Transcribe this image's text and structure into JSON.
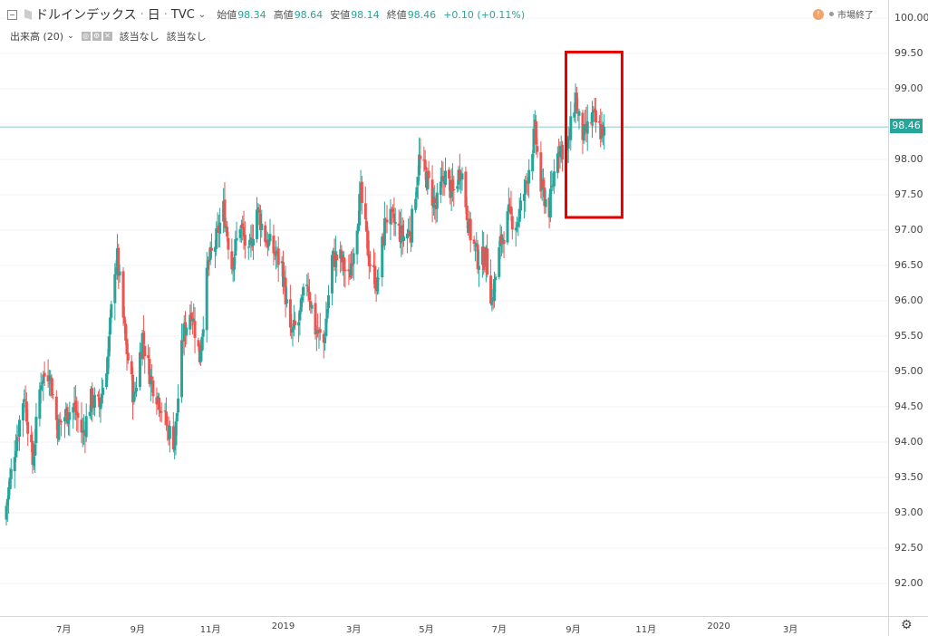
{
  "header": {
    "symbol": "ドルインデックス",
    "interval": "日",
    "source": "TVC",
    "open_label": "始値",
    "open_value": "98.34",
    "high_label": "高値",
    "high_value": "98.64",
    "low_label": "安値",
    "low_value": "98.14",
    "close_label": "終値",
    "close_value": "98.46",
    "change": "+0.10 (+0.11%)"
  },
  "status": {
    "label": "市場終了",
    "alert_icon": "!"
  },
  "volume": {
    "label": "出来高 (20)",
    "value1": "該当なし",
    "value2": "該当なし"
  },
  "colors": {
    "up": "#26a69a",
    "down": "#ef5350",
    "highlight": "#e50000",
    "grid": "#f0f3fa"
  },
  "chart_data": {
    "type": "candlestick",
    "last_price": "98.46",
    "y_ticks": [
      "100.00",
      "99.50",
      "99.00",
      "98.50",
      "98.00",
      "97.50",
      "97.00",
      "96.50",
      "96.00",
      "95.50",
      "95.00",
      "94.50",
      "94.00",
      "93.50",
      "93.00",
      "92.50",
      "92.00"
    ],
    "x_ticks": [
      "7月",
      "9月",
      "11月",
      "2019",
      "3月",
      "5月",
      "7月",
      "9月",
      "11月",
      "2020",
      "3月"
    ],
    "ylim": [
      91.5,
      100.3
    ],
    "anchors": [
      [
        "2018-05-14",
        93.1
      ],
      [
        "2018-05-21",
        93.9
      ],
      [
        "2018-05-29",
        94.7
      ],
      [
        "2018-06-05",
        93.7
      ],
      [
        "2018-06-12",
        94.9
      ],
      [
        "2018-06-19",
        95.0
      ],
      [
        "2018-06-26",
        94.2
      ],
      [
        "2018-07-03",
        94.4
      ],
      [
        "2018-07-10",
        94.5
      ],
      [
        "2018-07-17",
        94.1
      ],
      [
        "2018-07-24",
        94.6
      ],
      [
        "2018-07-31",
        94.5
      ],
      [
        "2018-08-07",
        95.2
      ],
      [
        "2018-08-13",
        96.5
      ],
      [
        "2018-08-15",
        96.6
      ],
      [
        "2018-08-22",
        95.4
      ],
      [
        "2018-08-29",
        94.6
      ],
      [
        "2018-09-05",
        95.5
      ],
      [
        "2018-09-12",
        94.9
      ],
      [
        "2018-09-19",
        94.6
      ],
      [
        "2018-09-26",
        94.2
      ],
      [
        "2018-10-02",
        94.0
      ],
      [
        "2018-10-09",
        95.5
      ],
      [
        "2018-10-16",
        95.9
      ],
      [
        "2018-10-23",
        95.2
      ],
      [
        "2018-10-30",
        96.5
      ],
      [
        "2018-11-05",
        96.8
      ],
      [
        "2018-11-12",
        97.3
      ],
      [
        "2018-11-19",
        96.5
      ],
      [
        "2018-11-26",
        97.1
      ],
      [
        "2018-12-03",
        96.6
      ],
      [
        "2018-12-10",
        97.3
      ],
      [
        "2018-12-17",
        96.9
      ],
      [
        "2018-12-24",
        96.7
      ],
      [
        "2018-12-31",
        96.5
      ],
      [
        "2019-01-07",
        95.5
      ],
      [
        "2019-01-14",
        95.7
      ],
      [
        "2019-01-21",
        96.3
      ],
      [
        "2019-01-28",
        95.6
      ],
      [
        "2019-02-04",
        95.4
      ],
      [
        "2019-02-11",
        96.6
      ],
      [
        "2019-02-18",
        96.6
      ],
      [
        "2019-02-25",
        96.3
      ],
      [
        "2019-03-07",
        97.5
      ],
      [
        "2019-03-14",
        96.6
      ],
      [
        "2019-03-21",
        96.2
      ],
      [
        "2019-03-28",
        97.2
      ],
      [
        "2019-04-04",
        97.1
      ],
      [
        "2019-04-11",
        96.9
      ],
      [
        "2019-04-18",
        97.0
      ],
      [
        "2019-04-25",
        98.0
      ],
      [
        "2019-05-02",
        97.7
      ],
      [
        "2019-05-09",
        97.3
      ],
      [
        "2019-05-16",
        97.8
      ],
      [
        "2019-05-23",
        97.5
      ],
      [
        "2019-05-30",
        97.9
      ],
      [
        "2019-06-06",
        97.0
      ],
      [
        "2019-06-13",
        96.6
      ],
      [
        "2019-06-20",
        96.6
      ],
      [
        "2019-06-25",
        96.0
      ],
      [
        "2019-07-02",
        96.8
      ],
      [
        "2019-07-09",
        97.2
      ],
      [
        "2019-07-16",
        97.1
      ],
      [
        "2019-07-23",
        97.6
      ],
      [
        "2019-07-31",
        98.4
      ],
      [
        "2019-08-05",
        97.6
      ],
      [
        "2019-08-12",
        97.3
      ],
      [
        "2019-08-19",
        98.2
      ],
      [
        "2019-08-27",
        98.1
      ],
      [
        "2019-09-03",
        98.9
      ],
      [
        "2019-09-05",
        98.6
      ],
      [
        "2019-09-10",
        98.3
      ],
      [
        "2019-09-17",
        98.6
      ],
      [
        "2019-09-24",
        98.4
      ],
      [
        "2019-09-27",
        98.46
      ]
    ],
    "last_bar": {
      "open": 98.34,
      "high": 98.64,
      "low": 98.14,
      "close": 98.46
    },
    "annotation": {
      "type": "rectangle",
      "from": [
        "2019-08-26",
        99.52
      ],
      "to": [
        "2019-10-12",
        97.18
      ]
    }
  }
}
